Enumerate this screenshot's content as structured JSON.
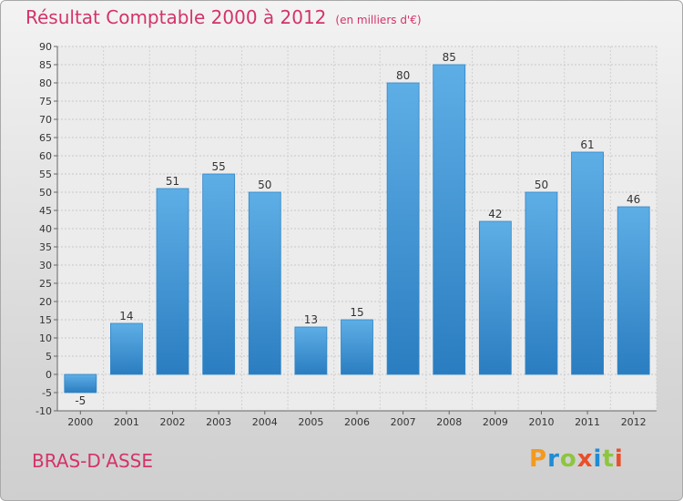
{
  "header": {
    "title": "Résultat Comptable 2000 à 2012",
    "subtitle": "(en milliers d'€)"
  },
  "place": "BRAS-D'ASSE",
  "logo": {
    "letters": [
      "P",
      "r",
      "o",
      "x",
      "i",
      "t",
      "i"
    ],
    "colors": [
      "#f39a1e",
      "#1e8cd3",
      "#8cc63f",
      "#e94f2a",
      "#1e8cd3",
      "#8cc63f",
      "#e94f2a"
    ]
  },
  "chart_data": {
    "type": "bar",
    "title": "Résultat Comptable 2000 à 2012",
    "xlabel": "",
    "ylabel": "",
    "categories": [
      "2000",
      "2001",
      "2002",
      "2003",
      "2004",
      "2005",
      "2006",
      "2007",
      "2008",
      "2009",
      "2010",
      "2011",
      "2012"
    ],
    "values": [
      -5,
      14,
      51,
      55,
      50,
      13,
      15,
      80,
      85,
      42,
      50,
      61,
      46
    ],
    "ylim": [
      -10,
      90
    ],
    "yticks": [
      -10,
      -5,
      0,
      5,
      10,
      15,
      20,
      25,
      30,
      35,
      40,
      45,
      50,
      55,
      60,
      65,
      70,
      75,
      80,
      85,
      90
    ],
    "grid": true,
    "bar_color": "#3a95d8"
  }
}
